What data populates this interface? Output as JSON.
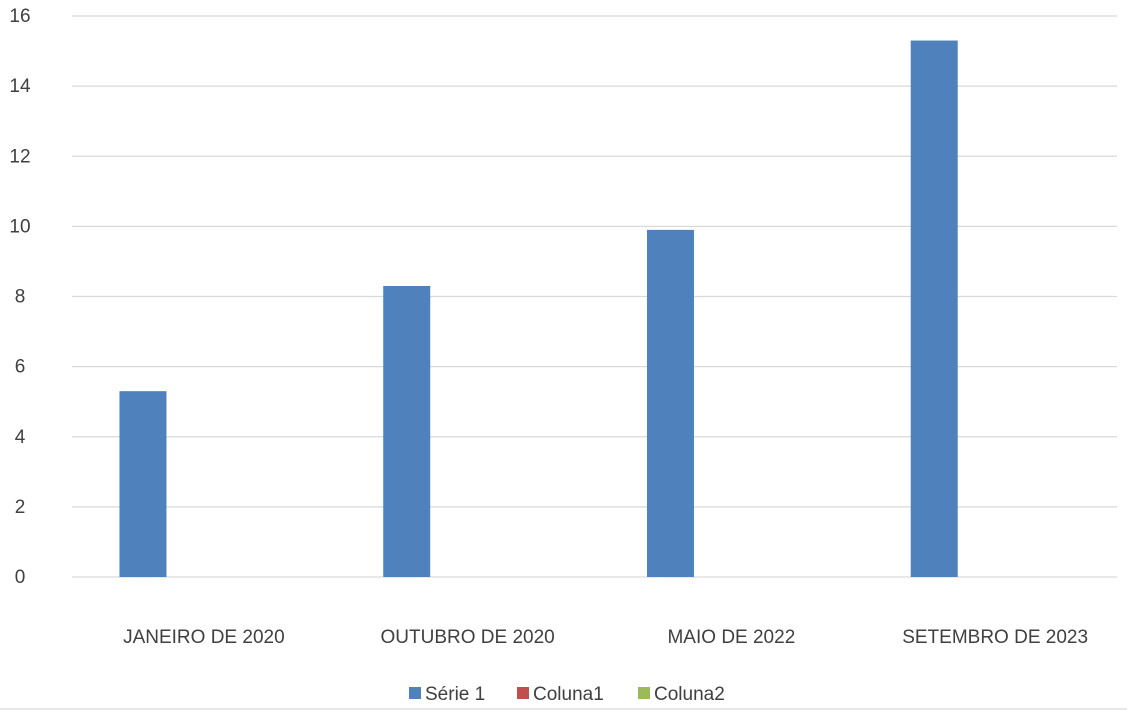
{
  "chart_data": {
    "type": "bar",
    "categories": [
      "JANEIRO DE 2020",
      "OUTUBRO DE 2020",
      "MAIO DE 2022",
      "SETEMBRO DE 2023"
    ],
    "series": [
      {
        "name": "Série 1",
        "values": [
          5.3,
          8.3,
          9.9,
          15.3
        ],
        "color": "#4f81bd"
      },
      {
        "name": "Coluna1",
        "values": [
          null,
          null,
          null,
          null
        ],
        "color": "#c0504d"
      },
      {
        "name": "Coluna2",
        "values": [
          null,
          null,
          null,
          null
        ],
        "color": "#9bbb59"
      }
    ],
    "yticks": [
      "0",
      "2",
      "4",
      "6",
      "8",
      "10",
      "12",
      "14",
      "16"
    ],
    "ylim": [
      0,
      16
    ],
    "grid": true,
    "legend_position": "bottom"
  }
}
